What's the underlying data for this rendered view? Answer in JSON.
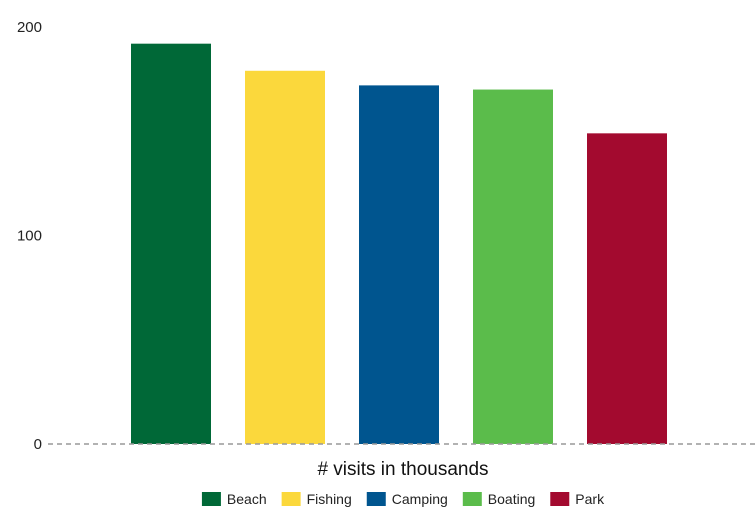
{
  "chart_data": {
    "type": "bar",
    "categories": [
      "Beach",
      "Fishing",
      "Camping",
      "Boating",
      "Park"
    ],
    "values": [
      192,
      179,
      172,
      170,
      149
    ],
    "colors": [
      "#006837",
      "#fbd83c",
      "#00558f",
      "#5bbc4b",
      "#a30a2f"
    ],
    "title": "",
    "xlabel": "# visits in thousands",
    "ylabel": "",
    "ylim": [
      0,
      200
    ],
    "yticks": [
      0,
      100,
      200
    ],
    "grid": false,
    "baseline_style": "dashed",
    "legend_position": "bottom-center",
    "legend": [
      "Beach",
      "Fishing",
      "Camping",
      "Boating",
      "Park"
    ]
  }
}
